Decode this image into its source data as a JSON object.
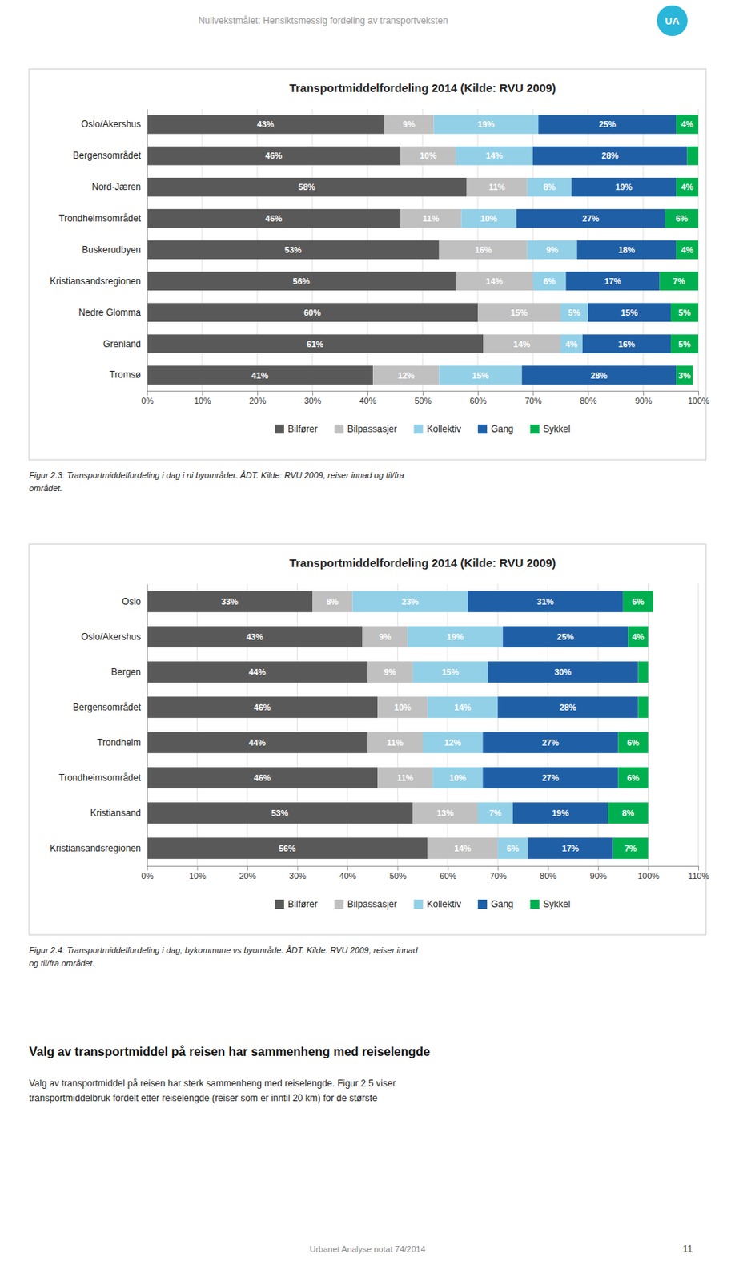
{
  "page_title": "Nullvekstmålet: Hensiktsmessig fordeling av transportveksten",
  "badge": "UA",
  "badge_color": "#29b6d9",
  "chart_data": [
    {
      "type": "bar",
      "orientation": "horizontal",
      "stacked": true,
      "data_labels": true,
      "grid": true,
      "legend": "bottom",
      "title": "Transportmiddelfordeling 2014 (Kilde: RVU 2009)",
      "categories": [
        "Oslo/Akershus",
        "Bergensområdet",
        "Nord-Jæren",
        "Trondheimsområdet",
        "Buskerudbyen",
        "Kristiansandsregionen",
        "Nedre Glomma",
        "Grenland",
        "Tromsø"
      ],
      "series": [
        {
          "name": "Bilfører",
          "color": "#595959",
          "values": [
            43,
            46,
            58,
            46,
            53,
            56,
            60,
            61,
            41
          ],
          "value_labels": [
            "43%",
            "46%",
            "58%",
            "46%",
            "53%",
            "56%",
            "60%",
            "61%",
            "41%"
          ]
        },
        {
          "name": "Bilpassasjer",
          "color": "#c0c0c0",
          "values": [
            9,
            10,
            11,
            11,
            16,
            14,
            15,
            14,
            12
          ],
          "value_labels": [
            "9%",
            "10%",
            "11%",
            "11%",
            "16%",
            "14%",
            "15%",
            "14%",
            "12%"
          ]
        },
        {
          "name": "Kollektiv",
          "color": "#92d0e8",
          "values": [
            19,
            14,
            8,
            10,
            9,
            6,
            5,
            4,
            15
          ],
          "value_labels": [
            "19%",
            "14%",
            "8%",
            "10%",
            "9%",
            "6%",
            "5%",
            "4%",
            "15%"
          ]
        },
        {
          "name": "Gang",
          "color": "#1f5fa6",
          "values": [
            25,
            28,
            19,
            27,
            18,
            17,
            15,
            16,
            28
          ],
          "value_labels": [
            "25%",
            "28%",
            "19%",
            "27%",
            "18%",
            "17%",
            "15%",
            "16%",
            "28%"
          ]
        },
        {
          "name": "Sykkel",
          "color": "#00b050",
          "values": [
            4,
            2,
            4,
            6,
            4,
            7,
            5,
            5,
            3
          ],
          "value_labels": [
            "4%",
            null,
            "4%",
            "6%",
            "4%",
            "7%",
            "5%",
            "5%",
            "3%"
          ]
        }
      ],
      "xlim": [
        0,
        100
      ],
      "xticks": [
        {
          "value": 0,
          "label": "0%"
        },
        {
          "value": 10,
          "label": "10%"
        },
        {
          "value": 20,
          "label": "20%"
        },
        {
          "value": 30,
          "label": "30%"
        },
        {
          "value": 40,
          "label": "40%"
        },
        {
          "value": 50,
          "label": "50%"
        },
        {
          "value": 60,
          "label": "60%"
        },
        {
          "value": 70,
          "label": "70%"
        },
        {
          "value": 80,
          "label": "80%"
        },
        {
          "value": 90,
          "label": "90%"
        },
        {
          "value": 100,
          "label": "100%"
        }
      ]
    },
    {
      "type": "bar",
      "orientation": "horizontal",
      "stacked": true,
      "data_labels": true,
      "grid": true,
      "legend": "bottom",
      "title": "Transportmiddelfordeling 2014 (Kilde: RVU 2009)",
      "categories": [
        "Oslo",
        "Oslo/Akershus",
        "Bergen",
        "Bergensområdet",
        "Trondheim",
        "Trondheimsområdet",
        "Kristiansand",
        "Kristiansandsregionen"
      ],
      "series": [
        {
          "name": "Bilfører",
          "color": "#595959",
          "values": [
            33,
            43,
            44,
            46,
            44,
            46,
            53,
            56
          ],
          "value_labels": [
            "33%",
            "43%",
            "44%",
            "46%",
            "44%",
            "46%",
            "53%",
            "56%"
          ]
        },
        {
          "name": "Bilpassasjer",
          "color": "#c0c0c0",
          "values": [
            8,
            9,
            9,
            10,
            11,
            11,
            13,
            14
          ],
          "value_labels": [
            "8%",
            "9%",
            "9%",
            "10%",
            "11%",
            "11%",
            "13%",
            "14%"
          ]
        },
        {
          "name": "Kollektiv",
          "color": "#92d0e8",
          "values": [
            23,
            19,
            15,
            14,
            12,
            10,
            7,
            6
          ],
          "value_labels": [
            "23%",
            "19%",
            "15%",
            "14%",
            "12%",
            "10%",
            "7%",
            "6%"
          ]
        },
        {
          "name": "Gang",
          "color": "#1f5fa6",
          "values": [
            31,
            25,
            30,
            28,
            27,
            27,
            19,
            17
          ],
          "value_labels": [
            "31%",
            "25%",
            "30%",
            "28%",
            "27%",
            "27%",
            "19%",
            "17%"
          ]
        },
        {
          "name": "Sykkel",
          "color": "#00b050",
          "values": [
            6,
            4,
            2,
            2,
            6,
            6,
            8,
            7
          ],
          "value_labels": [
            "6%",
            "4%",
            null,
            null,
            "6%",
            "6%",
            "8%",
            "7%"
          ]
        }
      ],
      "xlim": [
        0,
        110
      ],
      "xticks": [
        {
          "value": 0,
          "label": "0%"
        },
        {
          "value": 10,
          "label": "10%"
        },
        {
          "value": 20,
          "label": "20%"
        },
        {
          "value": 30,
          "label": "30%"
        },
        {
          "value": 40,
          "label": "40%"
        },
        {
          "value": 50,
          "label": "50%"
        },
        {
          "value": 60,
          "label": "60%"
        },
        {
          "value": 70,
          "label": "70%"
        },
        {
          "value": 80,
          "label": "80%"
        },
        {
          "value": 90,
          "label": "90%"
        },
        {
          "value": 100,
          "label": "100%"
        },
        {
          "value": 110,
          "label": "110%"
        }
      ]
    }
  ],
  "captions": [
    [
      "Figur 2.3: Transportmiddelfordeling i dag i ni byområder. ÅDT. Kilde: RVU 2009, reiser innad og til/fra",
      "området."
    ],
    [
      "Figur 2.4: Transportmiddelfordeling i dag, bykommune vs byområde. ÅDT. Kilde: RVU 2009, reiser innad",
      "og til/fra området."
    ]
  ],
  "body_title": "Valg av transportmiddel på reisen har sammenheng med reiselengde",
  "body_text": [
    "Valg av transportmiddel på reisen har sterk sammenheng med reiselengde. Figur 2.5 viser",
    "transportmiddelbruk fordelt etter reiselengde (reiser som er inntil 20 km) for de største"
  ],
  "footer": "Urbanet Analyse notat 74/2014",
  "page_number": "11"
}
